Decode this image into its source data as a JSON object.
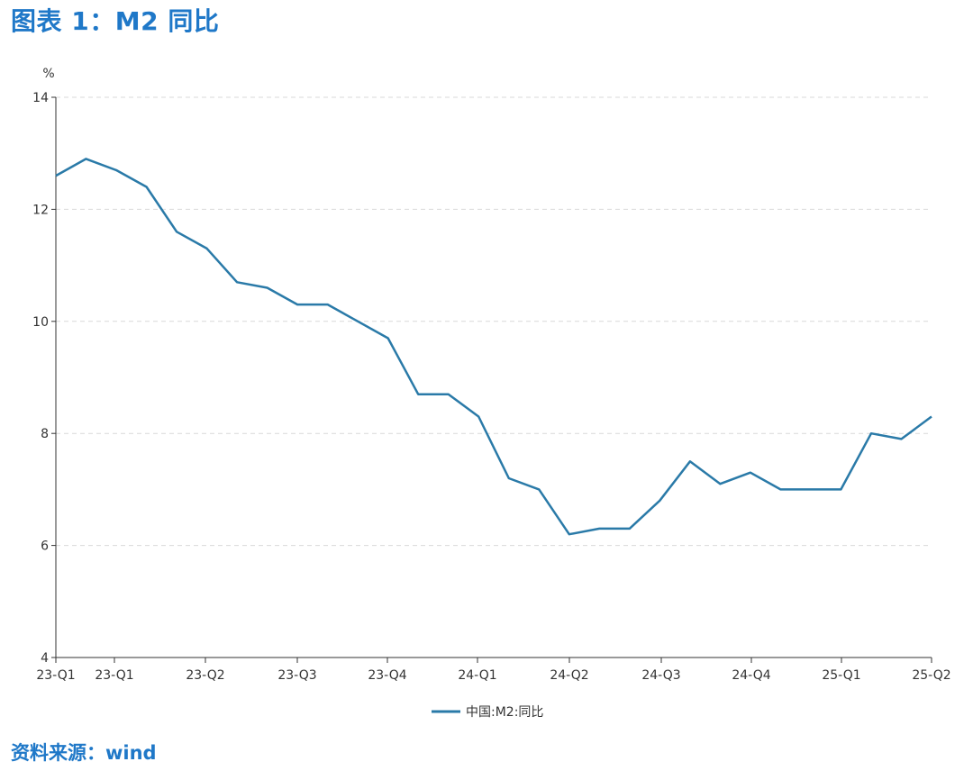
{
  "header": {
    "title": "图表 1：M2 同比"
  },
  "footer": {
    "source": "资料来源：wind"
  },
  "chart_data": {
    "type": "line",
    "title": "图表 1：M2 同比",
    "ylabel": "%",
    "ylim": [
      4,
      14
    ],
    "yticks": [
      4,
      6,
      8,
      10,
      12,
      14
    ],
    "grid": true,
    "legend_position": "bottom",
    "xtick_labels": [
      "23-Q1",
      "23-Q1",
      "23-Q2",
      "23-Q3",
      "23-Q4",
      "24-Q1",
      "24-Q2",
      "24-Q3",
      "24-Q4",
      "25-Q1",
      "25-Q2"
    ],
    "series": [
      {
        "name": "中国:M2:同比",
        "color": "#2a7aa8",
        "x": [
          "2023-01",
          "2023-02",
          "2023-03",
          "2023-04",
          "2023-05",
          "2023-06",
          "2023-07",
          "2023-08",
          "2023-09",
          "2023-10",
          "2023-11",
          "2023-12",
          "2024-01",
          "2024-02",
          "2024-03",
          "2024-04",
          "2024-05",
          "2024-06",
          "2024-07",
          "2024-08",
          "2024-09",
          "2024-10",
          "2024-11",
          "2024-12",
          "2025-01",
          "2025-02",
          "2025-03",
          "2025-04",
          "2025-05",
          "2025-06"
        ],
        "values": [
          12.6,
          12.9,
          12.7,
          12.4,
          11.6,
          11.3,
          10.7,
          10.6,
          10.3,
          10.3,
          10.0,
          9.7,
          8.7,
          8.7,
          8.3,
          7.2,
          7.0,
          6.2,
          6.3,
          6.3,
          6.8,
          7.5,
          7.1,
          7.3,
          7.0,
          7.0,
          7.0,
          8.0,
          7.9,
          8.3
        ]
      }
    ]
  }
}
